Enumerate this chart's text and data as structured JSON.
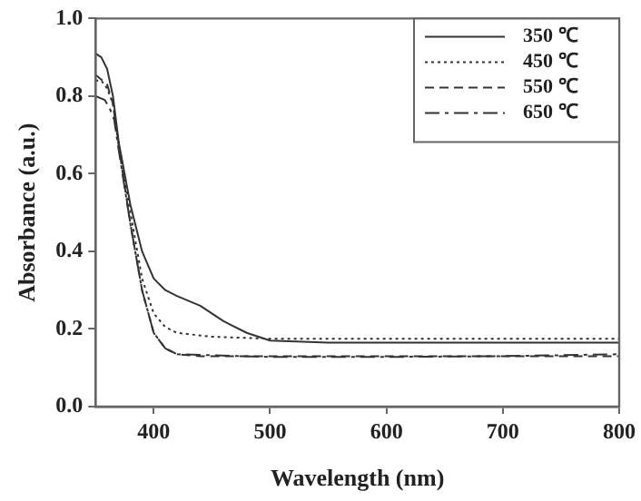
{
  "chart_data": {
    "type": "line",
    "xlabel": "Wavelength (nm)",
    "ylabel": "Absorbance (a.u.)",
    "xlim": [
      350,
      800
    ],
    "xticks": [
      400,
      500,
      600,
      700,
      800
    ],
    "ylim": [
      0,
      1
    ],
    "yticks": [
      {
        "value": 0,
        "label": "0.0"
      },
      0.2,
      0.4,
      0.6,
      0.8,
      {
        "value": 1,
        "label": "1.0"
      }
    ],
    "grid": false,
    "legend": "top right",
    "marker": "none",
    "series": [
      {
        "name": "350 ℃",
        "color": "#333333",
        "line_style": "solid",
        "x": [
          350,
          355,
          360,
          365,
          370,
          380,
          390,
          400,
          410,
          420,
          440,
          460,
          480,
          500,
          550,
          600,
          700,
          800
        ],
        "values": [
          0.91,
          0.9,
          0.87,
          0.8,
          0.68,
          0.52,
          0.4,
          0.33,
          0.3,
          0.285,
          0.26,
          0.22,
          0.19,
          0.17,
          0.165,
          0.165,
          0.165,
          0.165
        ]
      },
      {
        "name": "450 ℃",
        "color": "#333333",
        "line_style": "dotted",
        "x": [
          350,
          355,
          360,
          365,
          370,
          380,
          390,
          400,
          410,
          420,
          450,
          500,
          600,
          700,
          800
        ],
        "values": [
          0.84,
          0.84,
          0.82,
          0.78,
          0.68,
          0.5,
          0.33,
          0.24,
          0.205,
          0.19,
          0.18,
          0.175,
          0.175,
          0.175,
          0.175
        ]
      },
      {
        "name": "550 ℃",
        "color": "#333333",
        "line_style": "dashed",
        "x": [
          350,
          360,
          365,
          370,
          380,
          390,
          400,
          410,
          420,
          440,
          500,
          600,
          700,
          800
        ],
        "values": [
          0.855,
          0.83,
          0.78,
          0.67,
          0.47,
          0.3,
          0.19,
          0.15,
          0.135,
          0.13,
          0.13,
          0.13,
          0.13,
          0.13
        ]
      },
      {
        "name": "650 ℃",
        "color": "#333333",
        "line_style": "dashdot",
        "x": [
          350,
          358,
          362,
          366,
          370,
          380,
          390,
          400,
          410,
          420,
          500,
          600,
          700,
          800
        ],
        "values": [
          0.8,
          0.79,
          0.77,
          0.74,
          0.66,
          0.47,
          0.3,
          0.19,
          0.15,
          0.135,
          0.128,
          0.128,
          0.13,
          0.135
        ]
      }
    ]
  }
}
